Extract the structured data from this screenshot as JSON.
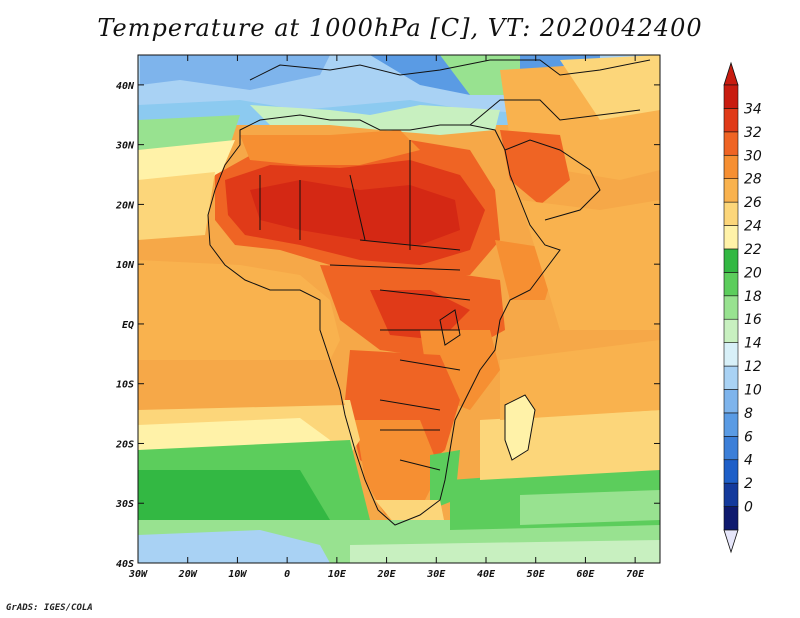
{
  "title": "Temperature at 1000hPa [C], VT: 2020042400",
  "credit": "GrADS: IGES/COLA",
  "map": {
    "variable": "Temperature at 1000hPa",
    "units": "C",
    "valid_time": "2020042400",
    "lon_range": [
      -30,
      75
    ],
    "lat_range": [
      -40,
      45
    ],
    "lon_ticks": [
      "30W",
      "20W",
      "10W",
      "0",
      "10E",
      "20E",
      "30E",
      "40E",
      "50E",
      "60E",
      "70E"
    ],
    "lat_ticks": [
      "40N",
      "30N",
      "20N",
      "10N",
      "EQ",
      "10S",
      "20S",
      "30S",
      "40S"
    ]
  },
  "colorbar": {
    "levels": [
      "34",
      "32",
      "30",
      "28",
      "26",
      "24",
      "22",
      "20",
      "18",
      "16",
      "14",
      "12",
      "10",
      "8",
      "6",
      "4",
      "2",
      "0"
    ],
    "colors": [
      "#0f1a6e",
      "#143a9c",
      "#1e5fc8",
      "#3c7fd8",
      "#5a9be4",
      "#7eb4ec",
      "#a9d2f4",
      "#d8f0f8",
      "#c8f0c0",
      "#98e290",
      "#5ccd5c",
      "#33b843",
      "#fff2a8",
      "#fcd67a",
      "#f9b24e",
      "#f68f32",
      "#ef6424",
      "#e03a18",
      "#c81c10"
    ],
    "upper_arrow_color": "#c81c10",
    "lower_arrow_color": "#e6e6fa"
  }
}
